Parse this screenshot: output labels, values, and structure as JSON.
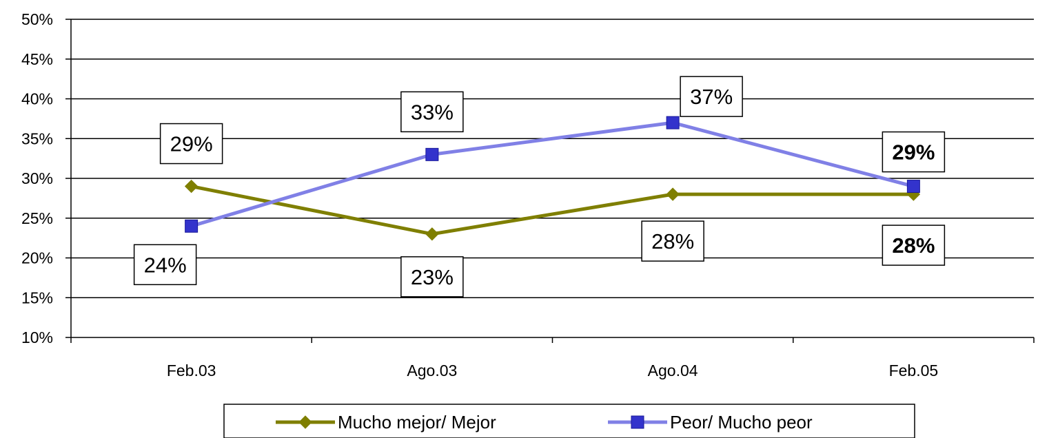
{
  "chart_data": {
    "type": "line",
    "categories": [
      "Feb.03",
      "Ago.03",
      "Ago.04",
      "Feb.05"
    ],
    "ylim": [
      0.1,
      0.5
    ],
    "yticks": [
      "10%",
      "15%",
      "20%",
      "25%",
      "30%",
      "35%",
      "40%",
      "45%",
      "50%"
    ],
    "grid": true,
    "legend_position": "bottom",
    "series": [
      {
        "name": "Mucho mejor/ Mejor",
        "values": [
          0.29,
          0.23,
          0.28,
          0.28
        ],
        "labels": [
          "29%",
          "23%",
          "28%",
          "28%"
        ],
        "marker": "diamond",
        "color": "#7f7f00",
        "label_bold": [
          false,
          false,
          false,
          true
        ]
      },
      {
        "name": "Peor/ Mucho peor",
        "values": [
          0.24,
          0.33,
          0.37,
          0.29
        ],
        "labels": [
          "24%",
          "33%",
          "37%",
          "29%"
        ],
        "marker": "square",
        "color": "#3333cc",
        "line_color": "#8080e6",
        "label_bold": [
          false,
          false,
          false,
          true
        ]
      }
    ]
  }
}
